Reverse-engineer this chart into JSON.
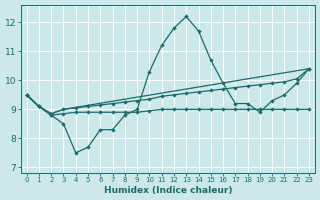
{
  "xlabel": "Humidex (Indice chaleur)",
  "x_ticks": [
    0,
    1,
    2,
    3,
    4,
    5,
    6,
    7,
    8,
    9,
    10,
    11,
    12,
    13,
    14,
    15,
    16,
    17,
    18,
    19,
    20,
    21,
    22,
    23
  ],
  "xlim": [
    -0.5,
    23.5
  ],
  "ylim": [
    6.8,
    12.6
  ],
  "y_ticks": [
    7,
    8,
    9,
    10,
    11,
    12
  ],
  "bg_color": "#cce8e8",
  "grid_color": "#ffffff",
  "line_color": "#1a6b6b",
  "line1_x": [
    0,
    1,
    2,
    3,
    4,
    5,
    6,
    7,
    8,
    9,
    10,
    11,
    12,
    13,
    14,
    15,
    16,
    17,
    18,
    19,
    20,
    21,
    22,
    23
  ],
  "line1_y": [
    9.5,
    9.1,
    8.8,
    8.5,
    7.5,
    7.7,
    8.3,
    8.3,
    8.8,
    9.0,
    10.3,
    11.2,
    11.8,
    12.2,
    11.7,
    10.7,
    9.9,
    9.2,
    9.2,
    8.9,
    9.3,
    9.5,
    9.9,
    10.4
  ],
  "line2_x": [
    0,
    1,
    2,
    3,
    4,
    5,
    6,
    7,
    8,
    9,
    10,
    11,
    12,
    13,
    14,
    15,
    16,
    17,
    18,
    19,
    20,
    21,
    22,
    23
  ],
  "line2_y": [
    9.5,
    9.1,
    8.8,
    8.85,
    8.9,
    8.9,
    8.9,
    8.9,
    8.9,
    8.9,
    8.95,
    9.0,
    9.0,
    9.0,
    9.0,
    9.0,
    9.0,
    9.0,
    9.0,
    9.0,
    9.0,
    9.0,
    9.0,
    9.0
  ],
  "line3_x": [
    0,
    1,
    2,
    3,
    4,
    5,
    6,
    7,
    8,
    9,
    10,
    11,
    12,
    13,
    14,
    15,
    16,
    17,
    18,
    19,
    20,
    21,
    22,
    23
  ],
  "line3_y": [
    9.5,
    9.1,
    8.85,
    9.0,
    9.05,
    9.1,
    9.15,
    9.2,
    9.25,
    9.3,
    9.35,
    9.45,
    9.5,
    9.55,
    9.6,
    9.65,
    9.7,
    9.75,
    9.8,
    9.85,
    9.9,
    9.95,
    10.05,
    10.4
  ],
  "line4_x": [
    0,
    1,
    2,
    3,
    23
  ],
  "line4_y": [
    9.5,
    9.1,
    8.85,
    9.0,
    10.4
  ]
}
